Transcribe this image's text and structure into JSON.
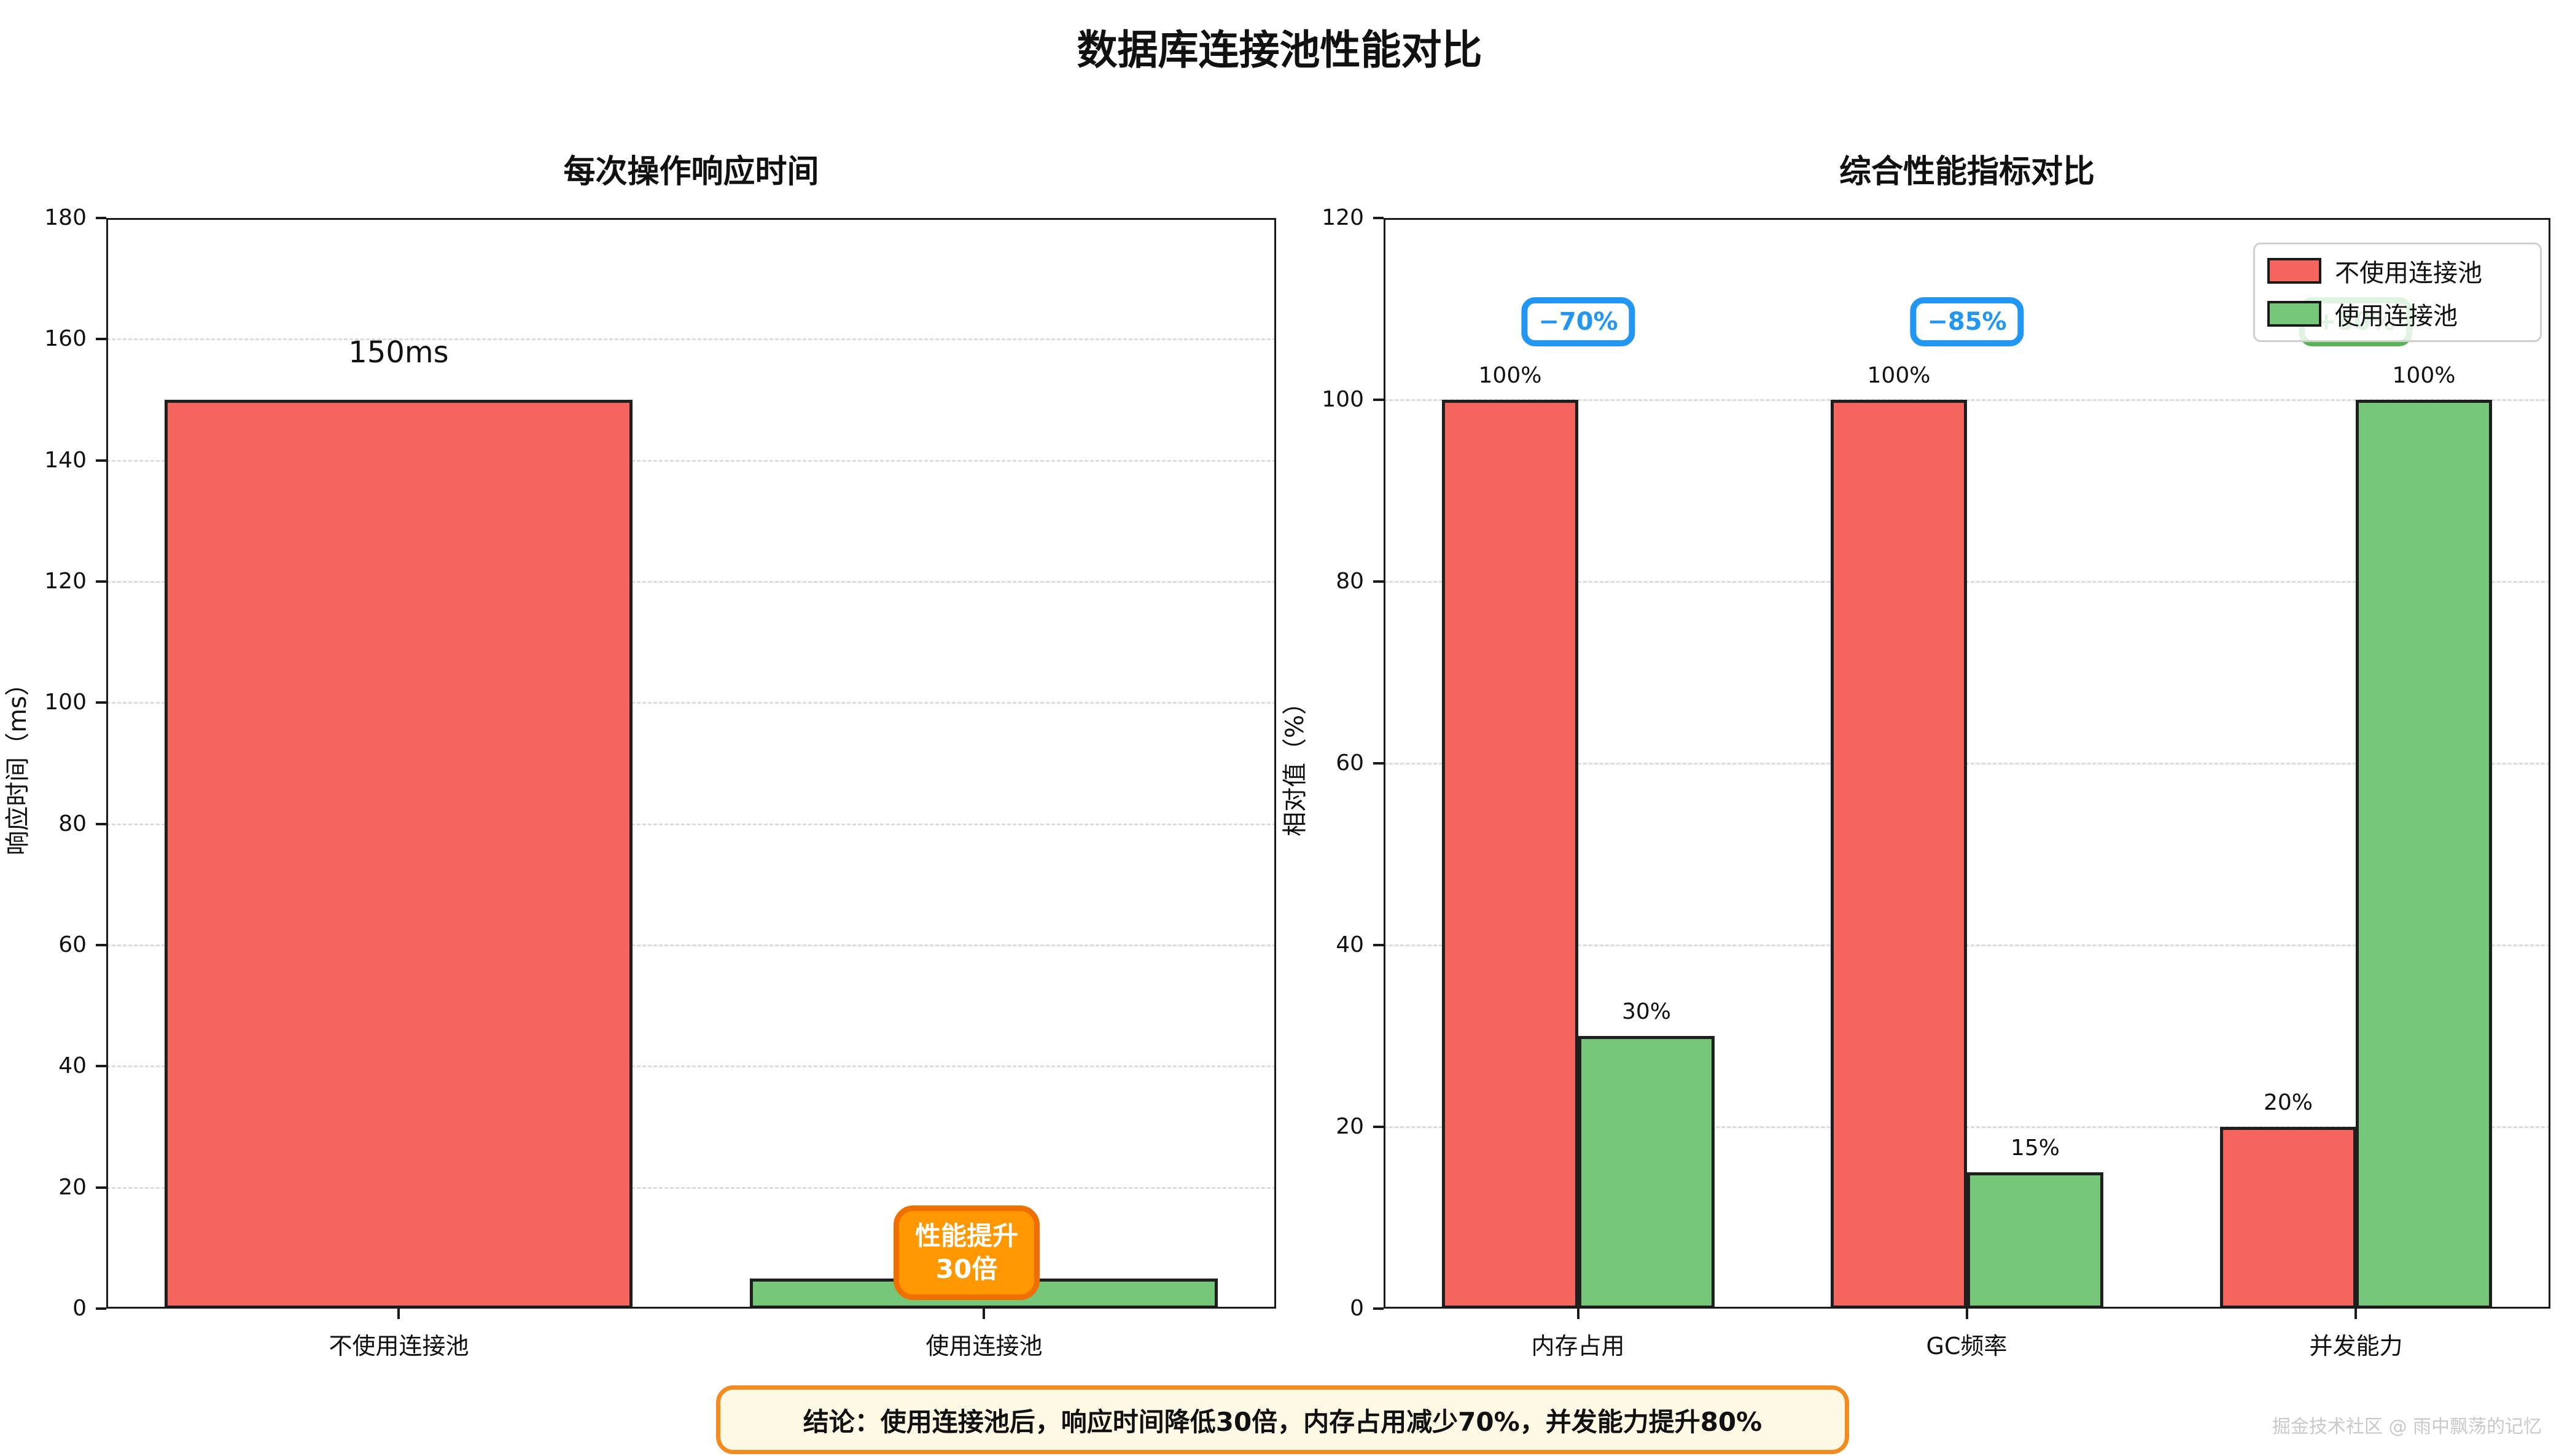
{
  "title": "数据库连接池性能对比",
  "conclusion": "结论：使用连接池后，响应时间降低30倍，内存占用减少70%，并发能力提升80%",
  "watermark": "掘金技术社区 @ 雨中飘荡的记忆",
  "colors": {
    "red": "#f4655d",
    "green": "#77c77a",
    "orange_fill": "#ff9800",
    "orange_border": "#ef7000",
    "blue": "#2196f3",
    "badge_green": "#56b456",
    "conclusion_bg": "#fdf9e4",
    "conclusion_border": "#f28b20",
    "grid": "#dcdcdc",
    "edge": "#1f1f1f"
  },
  "chart_data": [
    {
      "type": "bar",
      "title": "每次操作响应时间",
      "ylabel": "响应时间（ms）",
      "categories": [
        "不使用连接池",
        "使用连接池"
      ],
      "values": [
        150,
        5
      ],
      "bar_colors": [
        "red",
        "green"
      ],
      "value_labels": [
        "150ms",
        null
      ],
      "ylim": [
        0,
        180
      ],
      "yticks": [
        0,
        20,
        40,
        60,
        80,
        100,
        120,
        140,
        160,
        180
      ],
      "grid": "horizontal-dashed",
      "annotation": {
        "lines": [
          "性能提升",
          "30倍"
        ],
        "style": "orange",
        "category_index": 1
      }
    },
    {
      "type": "bar",
      "title": "综合性能指标对比",
      "ylabel": "相对值（%）",
      "categories": [
        "内存占用",
        "GC频率",
        "并发能力"
      ],
      "series": [
        {
          "name": "不使用连接池",
          "color": "red",
          "values": [
            100,
            100,
            20
          ],
          "value_labels": [
            "100%",
            "100%",
            "20%"
          ]
        },
        {
          "name": "使用连接池",
          "color": "green",
          "values": [
            30,
            15,
            100
          ],
          "value_labels": [
            "30%",
            "15%",
            "100%"
          ]
        }
      ],
      "ylim": [
        0,
        120
      ],
      "yticks": [
        0,
        20,
        40,
        60,
        80,
        100,
        120
      ],
      "grid": "horizontal-dashed",
      "legend_position": "upper-right",
      "badges": [
        {
          "text": "−70%",
          "style": "blue",
          "category_index": 0
        },
        {
          "text": "−85%",
          "style": "blue",
          "category_index": 1
        },
        {
          "text": "+80%",
          "style": "green",
          "category_index": 2
        }
      ]
    }
  ]
}
